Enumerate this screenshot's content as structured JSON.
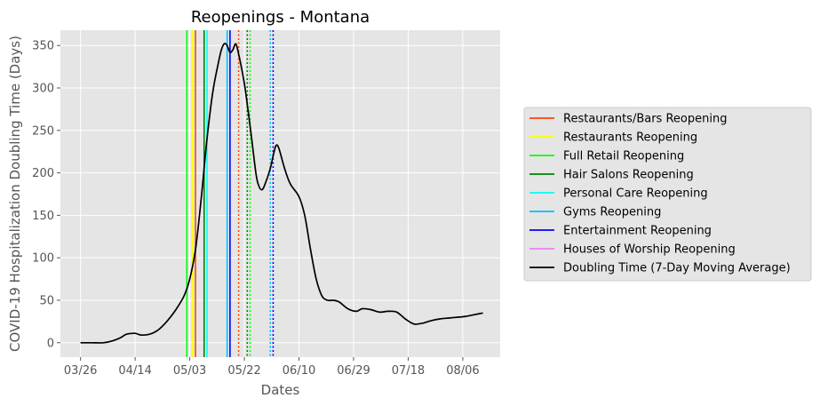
{
  "colors": {
    "plot_background": "#e5e5e5",
    "grid": "#ffffff",
    "legend_background": "#e5e5e5",
    "legend_border": "#cccccc"
  },
  "chart_data": {
    "type": "line",
    "title": "Reopenings - Montana",
    "xlabel": "Dates",
    "ylabel": "COVID-19 Hospitalization Doubling Time (Days)",
    "x_tick_labels": [
      "03/26",
      "04/14",
      "05/03",
      "05/22",
      "06/10",
      "06/29",
      "07/18",
      "08/06"
    ],
    "y_ticks": [
      0,
      50,
      100,
      150,
      200,
      250,
      300,
      350
    ],
    "ylim": [
      -17,
      368
    ],
    "xlim": [
      "2020-03-19",
      "2020-08-19"
    ],
    "grid": true,
    "legend_placement": "right, outside plot",
    "series": [
      {
        "name": "Doubling Time (7-Day Moving Average)",
        "color": "#000000",
        "x": [
          "2020-03-26",
          "2020-03-30",
          "2020-04-03",
          "2020-04-06",
          "2020-04-09",
          "2020-04-11",
          "2020-04-14",
          "2020-04-16",
          "2020-04-19",
          "2020-04-22",
          "2020-04-25",
          "2020-04-28",
          "2020-05-01",
          "2020-05-03",
          "2020-05-05",
          "2020-05-07",
          "2020-05-09",
          "2020-05-11",
          "2020-05-13",
          "2020-05-14",
          "2020-05-15",
          "2020-05-16",
          "2020-05-17",
          "2020-05-18",
          "2020-05-19",
          "2020-05-20",
          "2020-05-22",
          "2020-05-24",
          "2020-05-26",
          "2020-05-27",
          "2020-05-28",
          "2020-05-29",
          "2020-05-31",
          "2020-06-01",
          "2020-06-02",
          "2020-06-03",
          "2020-06-05",
          "2020-06-07",
          "2020-06-10",
          "2020-06-12",
          "2020-06-14",
          "2020-06-16",
          "2020-06-18",
          "2020-06-20",
          "2020-06-22",
          "2020-06-24",
          "2020-06-27",
          "2020-06-30",
          "2020-07-02",
          "2020-07-05",
          "2020-07-08",
          "2020-07-11",
          "2020-07-14",
          "2020-07-17",
          "2020-07-20",
          "2020-07-23",
          "2020-07-26",
          "2020-07-29",
          "2020-08-01",
          "2020-08-04",
          "2020-08-07",
          "2020-08-10",
          "2020-08-13"
        ],
        "y": [
          0,
          0,
          0,
          2,
          6,
          10,
          11,
          9,
          10,
          15,
          25,
          38,
          55,
          75,
          110,
          170,
          240,
          295,
          330,
          345,
          352,
          350,
          342,
          345,
          352,
          340,
          305,
          255,
          200,
          185,
          180,
          185,
          205,
          220,
          232,
          229,
          205,
          187,
          172,
          150,
          110,
          75,
          55,
          50,
          50,
          48,
          40,
          37,
          40,
          39,
          36,
          37,
          36,
          28,
          22,
          23,
          26,
          28,
          29,
          30,
          31,
          33,
          35
        ]
      }
    ],
    "reopening_markers": [
      {
        "name": "Restaurants/Bars Reopening",
        "color": "#ff4500",
        "dates": [
          "2020-05-05",
          "2020-05-20"
        ],
        "styles": [
          "solid",
          "dotted"
        ]
      },
      {
        "name": "Restaurants Reopening",
        "color": "#ffff00",
        "dates": [
          "2020-05-04"
        ],
        "styles": [
          "solid"
        ]
      },
      {
        "name": "Full Retail Reopening",
        "color": "#00ff00",
        "dates": [
          "2020-05-02",
          "2020-05-24"
        ],
        "styles": [
          "solid",
          "dotted"
        ]
      },
      {
        "name": "Hair Salons Reopening",
        "color": "#008000",
        "dates": [
          "2020-05-08",
          "2020-05-23"
        ],
        "styles": [
          "solid",
          "dotted"
        ]
      },
      {
        "name": "Personal Care Reopening",
        "color": "#00ffff",
        "dates": [
          "2020-05-09"
        ],
        "styles": [
          "solid"
        ]
      },
      {
        "name": "Gyms Reopening",
        "color": "#00bfff",
        "dates": [
          "2020-05-16",
          "2020-05-31"
        ],
        "styles": [
          "solid",
          "dotted"
        ]
      },
      {
        "name": "Entertainment Reopening",
        "color": "#0000ff",
        "dates": [
          "2020-05-17",
          "2020-06-01"
        ],
        "styles": [
          "solid",
          "dotted"
        ]
      },
      {
        "name": "Houses of Worship Reopening",
        "color": "#ee82ee",
        "dates": [],
        "styles": []
      }
    ],
    "legend": [
      {
        "label": "Restaurants/Bars Reopening",
        "color": "#ff4500"
      },
      {
        "label": "Restaurants Reopening",
        "color": "#ffff00"
      },
      {
        "label": "Full Retail Reopening",
        "color": "#00ff00"
      },
      {
        "label": "Hair Salons Reopening",
        "color": "#008000"
      },
      {
        "label": "Personal Care Reopening",
        "color": "#00ffff"
      },
      {
        "label": "Gyms Reopening",
        "color": "#00bfff"
      },
      {
        "label": "Entertainment Reopening",
        "color": "#0000ff"
      },
      {
        "label": "Houses of Worship Reopening",
        "color": "#ee82ee"
      },
      {
        "label": "Doubling Time (7-Day Moving Average)",
        "color": "#000000"
      }
    ]
  }
}
